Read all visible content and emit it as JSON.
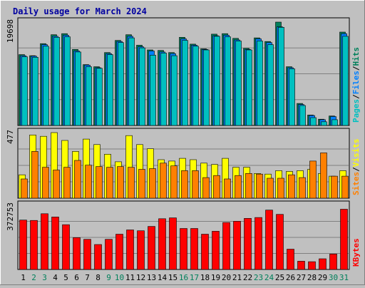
{
  "chart_data": {
    "type": "bar",
    "title": "Daily usage for March 2024",
    "categories": [
      "1",
      "2",
      "3",
      "4",
      "5",
      "6",
      "7",
      "8",
      "9",
      "10",
      "11",
      "12",
      "13",
      "14",
      "15",
      "16",
      "17",
      "18",
      "19",
      "20",
      "21",
      "22",
      "23",
      "24",
      "25",
      "26",
      "27",
      "28",
      "29",
      "30",
      "31"
    ],
    "weekend_categories": [
      "2",
      "3",
      "9",
      "10",
      "16",
      "17",
      "23",
      "24",
      "30",
      "31"
    ],
    "panels": [
      {
        "name": "pages-files-hits",
        "ymax_label": "19698",
        "ylim": [
          0,
          19698
        ],
        "legend": [
          "Pages",
          "/",
          "Files",
          "/",
          "Hits"
        ],
        "legend_colors": [
          "#00C0C0",
          "#000000",
          "#0080FF",
          "#000000",
          "#00805B"
        ],
        "series": [
          {
            "name": "Hits",
            "color": "#00805B",
            "values": [
              13500,
              13300,
              15600,
              17300,
              17500,
              14500,
              11600,
              11200,
              13900,
              16200,
              17300,
              15300,
              14400,
              14300,
              13900,
              16800,
              15500,
              14600,
              17400,
              17500,
              16600,
              14700,
              16700,
              16000,
              19698,
              11200,
              4200,
              2000,
              1200,
              1800,
              17800
            ]
          },
          {
            "name": "Files",
            "color": "#0080FF",
            "values": [
              13300,
              13200,
              15400,
              17000,
              17200,
              14200,
              11500,
              11000,
              13700,
              16000,
              17000,
              15000,
              14200,
              14000,
              13700,
              16500,
              15300,
              14500,
              17100,
              17200,
              16300,
              14500,
              16500,
              15800,
              18800,
              11000,
              4000,
              1900,
              1100,
              1700,
              17500
            ]
          },
          {
            "name": "Pages",
            "color": "#00C0C0",
            "values": [
              13100,
              13000,
              15100,
              16800,
              16900,
              14000,
              11200,
              10900,
              13500,
              15800,
              16700,
              14800,
              13400,
              13800,
              13300,
              16200,
              15100,
              14400,
              17000,
              16900,
              16100,
              14400,
              16100,
              15400,
              18700,
              10800,
              3800,
              1500,
              700,
              1100,
              17000
            ]
          }
        ]
      },
      {
        "name": "visits-sites",
        "ymax_label": "477",
        "ylim": [
          0,
          477
        ],
        "legend": [
          "Sites",
          "/",
          "Visits"
        ],
        "legend_colors": [
          "#FF8000",
          "#000000",
          "#FFFF00"
        ],
        "series": [
          {
            "name": "Visits",
            "color": "#FFFF00",
            "values": [
              170,
              460,
              450,
              477,
              420,
              340,
              430,
              390,
              320,
              265,
              455,
              390,
              360,
              280,
              270,
              290,
              280,
              255,
              245,
              290,
              225,
              225,
              180,
              175,
              200,
              195,
              200,
              210,
              180,
              160,
              200
            ]
          },
          {
            "name": "Sites",
            "color": "#FF8000",
            "values": [
              140,
              340,
              225,
              205,
              225,
              275,
              240,
              230,
              225,
              230,
              225,
              210,
              215,
              255,
              235,
              200,
              200,
              150,
              165,
              140,
              165,
              180,
              175,
              145,
              145,
              170,
              150,
              270,
              330,
              160,
              160
            ]
          }
        ]
      },
      {
        "name": "kbytes",
        "ymax_label": "372753",
        "ylim": [
          0,
          372753
        ],
        "legend": [
          "KBytes"
        ],
        "legend_colors": [
          "#FF0000"
        ],
        "series": [
          {
            "name": "KBytes",
            "color": "#FF0000",
            "values": [
              287000,
              285000,
              324000,
              305000,
              260000,
              185000,
              175000,
              145000,
              175000,
              205000,
              230000,
              225000,
              250000,
              295000,
              300000,
              238000,
              238000,
              205000,
              222000,
              273000,
              280000,
              297000,
              302000,
              345000,
              320000,
              118000,
              48000,
              45000,
              62000,
              90000,
              350000
            ]
          }
        ]
      }
    ]
  }
}
